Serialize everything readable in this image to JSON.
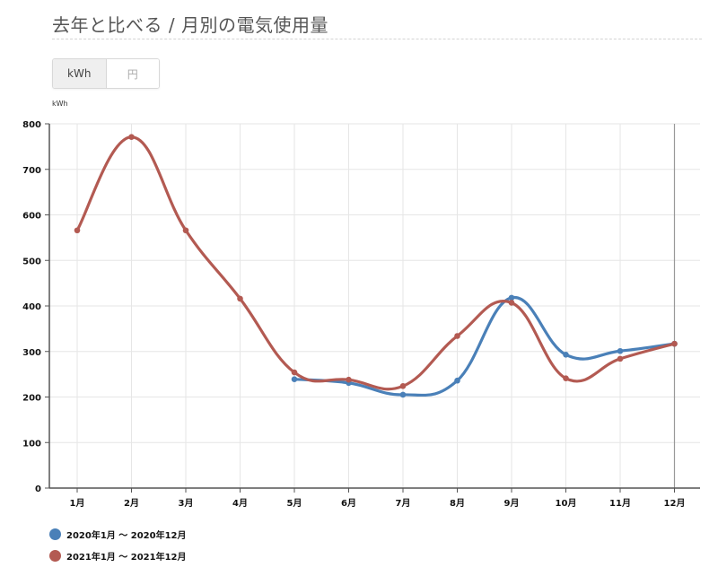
{
  "header": {
    "title": "去年と比べる / 月別の電気使用量"
  },
  "unit_toggle": {
    "options": [
      {
        "label": "kWh",
        "active": true
      },
      {
        "label": "円",
        "active": false
      }
    ]
  },
  "chart_data": {
    "type": "line",
    "title": "月別の電気使用量",
    "xlabel": "",
    "ylabel": "kWh",
    "ylim": [
      0,
      800
    ],
    "yticks": [
      0,
      100,
      200,
      300,
      400,
      500,
      600,
      700,
      800
    ],
    "grid": true,
    "legend_position": "bottom-left",
    "categories": [
      "1月",
      "2月",
      "3月",
      "4月",
      "5月",
      "6月",
      "7月",
      "8月",
      "9月",
      "10月",
      "11月",
      "12月"
    ],
    "series": [
      {
        "name": "2020年1月 〜 2020年12月",
        "color": "#4a80b8",
        "values": [
          null,
          null,
          null,
          null,
          239,
          231,
          205,
          236,
          418,
          293,
          301,
          317
        ]
      },
      {
        "name": "2021年1月 〜 2021年12月",
        "color": "#b35a52",
        "values": [
          566,
          771,
          566,
          416,
          254,
          238,
          224,
          334,
          407,
          241,
          284,
          317
        ]
      }
    ],
    "hover_category": "12月"
  },
  "legend": {
    "items": [
      {
        "label": "2020年1月 〜 2020年12月",
        "color": "#4a80b8"
      },
      {
        "label": "2021年1月 〜 2021年12月",
        "color": "#b35a52"
      }
    ]
  }
}
